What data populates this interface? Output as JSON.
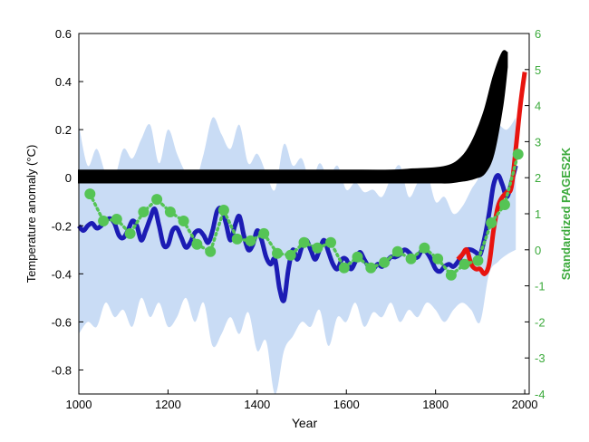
{
  "chart_data": {
    "type": "line",
    "xlabel": "Year",
    "ylabel": "Temperature anomaly (°C)",
    "y2label": "Standardized PAGES2K",
    "xlim": [
      1000,
      2010
    ],
    "ylim": [
      -0.9,
      0.6
    ],
    "y2lim": [
      -4,
      6
    ],
    "xticks": [
      1000,
      1200,
      1400,
      1600,
      1800,
      2000
    ],
    "yticks": [
      -0.8,
      -0.6,
      -0.4,
      -0.2,
      0,
      0.2,
      0.4,
      0.6
    ],
    "y2ticks": [
      -4,
      -3,
      -2,
      -1,
      0,
      1,
      2,
      3,
      4,
      5,
      6
    ],
    "grid": false,
    "colors": {
      "uncertainty": "#c9dcf5",
      "reconstruction": "#1c1cb4",
      "instrumental": "#e8140f",
      "projection": "#000000",
      "pages2k": "#55c455",
      "right_axis": "#3caa3c"
    },
    "uncertainty_band": {
      "x": [
        1000,
        1020,
        1040,
        1060,
        1080,
        1100,
        1120,
        1140,
        1160,
        1180,
        1200,
        1220,
        1240,
        1260,
        1280,
        1300,
        1320,
        1340,
        1360,
        1380,
        1400,
        1420,
        1440,
        1460,
        1480,
        1500,
        1520,
        1540,
        1560,
        1580,
        1600,
        1620,
        1640,
        1660,
        1680,
        1700,
        1720,
        1740,
        1760,
        1780,
        1800,
        1820,
        1840,
        1860,
        1880,
        1900,
        1920,
        1940,
        1960,
        1980
      ],
      "upper": [
        0.22,
        0.05,
        0.12,
        0.02,
        0.0,
        0.12,
        0.08,
        0.16,
        0.22,
        0.06,
        0.2,
        0.1,
        0.02,
        -0.02,
        0.1,
        0.25,
        0.18,
        0.12,
        0.22,
        0.06,
        0.1,
        0.02,
        -0.05,
        0.14,
        0.05,
        0.08,
        -0.02,
        0.06,
        0.0,
        0.05,
        -0.05,
        -0.02,
        -0.06,
        -0.05,
        -0.08,
        0.0,
        0.05,
        -0.08,
        -0.02,
        0.02,
        -0.1,
        -0.08,
        -0.15,
        -0.12,
        -0.05,
        0.02,
        0.2,
        0.22,
        0.2,
        0.25
      ],
      "lower": [
        -0.65,
        -0.6,
        -0.62,
        -0.52,
        -0.58,
        -0.55,
        -0.62,
        -0.5,
        -0.58,
        -0.52,
        -0.62,
        -0.58,
        -0.5,
        -0.6,
        -0.52,
        -0.7,
        -0.65,
        -0.58,
        -0.65,
        -0.56,
        -0.72,
        -0.68,
        -0.9,
        -0.72,
        -0.66,
        -0.6,
        -0.62,
        -0.55,
        -0.7,
        -0.58,
        -0.6,
        -0.52,
        -0.62,
        -0.56,
        -0.58,
        -0.52,
        -0.6,
        -0.55,
        -0.58,
        -0.52,
        -0.55,
        -0.6,
        -0.55,
        -0.52,
        -0.55,
        -0.6,
        -0.4,
        -0.35,
        -0.32,
        -0.3
      ]
    },
    "series": [
      {
        "x": [
          1000,
          1010,
          1020,
          1030,
          1040,
          1050,
          1060,
          1070,
          1080,
          1090,
          1100,
          1110,
          1120,
          1130,
          1140,
          1150,
          1160,
          1170,
          1180,
          1190,
          1200,
          1210,
          1220,
          1230,
          1240,
          1250,
          1260,
          1270,
          1280,
          1290,
          1300,
          1310,
          1320,
          1330,
          1340,
          1350,
          1360,
          1370,
          1380,
          1390,
          1400,
          1410,
          1420,
          1430,
          1440,
          1450,
          1460,
          1470,
          1480,
          1490,
          1500,
          1510,
          1520,
          1530,
          1540,
          1550,
          1560,
          1570,
          1580,
          1590,
          1600,
          1610,
          1620,
          1630,
          1640,
          1650,
          1660,
          1670,
          1680,
          1690,
          1700,
          1710,
          1720,
          1730,
          1740,
          1750,
          1760,
          1770,
          1780,
          1790,
          1800,
          1810,
          1820,
          1830,
          1840,
          1850,
          1860,
          1870,
          1880,
          1890,
          1900,
          1910,
          1920,
          1930,
          1940,
          1950,
          1960,
          1970,
          1980
        ],
        "values": [
          -0.2,
          -0.22,
          -0.2,
          -0.19,
          -0.21,
          -0.2,
          -0.18,
          -0.17,
          -0.19,
          -0.24,
          -0.25,
          -0.22,
          -0.18,
          -0.2,
          -0.26,
          -0.22,
          -0.17,
          -0.13,
          -0.2,
          -0.28,
          -0.28,
          -0.22,
          -0.21,
          -0.25,
          -0.29,
          -0.27,
          -0.23,
          -0.22,
          -0.24,
          -0.27,
          -0.22,
          -0.14,
          -0.13,
          -0.19,
          -0.26,
          -0.2,
          -0.16,
          -0.24,
          -0.3,
          -0.28,
          -0.22,
          -0.26,
          -0.33,
          -0.36,
          -0.34,
          -0.46,
          -0.51,
          -0.38,
          -0.3,
          -0.34,
          -0.29,
          -0.26,
          -0.3,
          -0.34,
          -0.3,
          -0.26,
          -0.31,
          -0.36,
          -0.38,
          -0.34,
          -0.34,
          -0.38,
          -0.35,
          -0.31,
          -0.34,
          -0.37,
          -0.38,
          -0.36,
          -0.37,
          -0.35,
          -0.33,
          -0.33,
          -0.32,
          -0.3,
          -0.31,
          -0.33,
          -0.33,
          -0.3,
          -0.31,
          -0.34,
          -0.38,
          -0.39,
          -0.37,
          -0.36,
          -0.37,
          -0.35,
          -0.32,
          -0.3,
          -0.3,
          -0.31,
          -0.32,
          -0.25,
          -0.15,
          -0.03,
          0.01,
          -0.03,
          -0.08,
          -0.02,
          0.05
        ]
      },
      {
        "x": [
          1850,
          1860,
          1870,
          1880,
          1890,
          1900,
          1910,
          1920,
          1930,
          1940,
          1950,
          1960,
          1970,
          1980,
          1990,
          2000
        ],
        "values": [
          -0.34,
          -0.32,
          -0.3,
          -0.36,
          -0.38,
          -0.38,
          -0.4,
          -0.36,
          -0.22,
          -0.12,
          -0.08,
          -0.06,
          -0.04,
          0.12,
          0.3,
          0.44
        ]
      },
      {
        "x": [
          1000,
          1100,
          1200,
          1300,
          1400,
          1500,
          1600,
          1700,
          1750,
          1800,
          1830,
          1850,
          1870,
          1890,
          1910,
          1930,
          1950,
          1960
        ],
        "upper": [
          0.03,
          0.03,
          0.03,
          0.03,
          0.03,
          0.03,
          0.03,
          0.03,
          0.035,
          0.04,
          0.05,
          0.07,
          0.11,
          0.18,
          0.28,
          0.42,
          0.52,
          0.52
        ],
        "lower": [
          -0.02,
          -0.02,
          -0.02,
          -0.02,
          -0.02,
          -0.02,
          -0.02,
          -0.02,
          -0.02,
          -0.02,
          -0.02,
          -0.015,
          -0.01,
          0.0,
          0.02,
          0.1,
          0.3,
          0.46
        ]
      },
      {
        "axis": "right",
        "x": [
          1025,
          1055,
          1085,
          1115,
          1145,
          1175,
          1205,
          1235,
          1265,
          1295,
          1325,
          1355,
          1385,
          1415,
          1445,
          1475,
          1505,
          1535,
          1565,
          1595,
          1625,
          1655,
          1685,
          1715,
          1745,
          1775,
          1805,
          1835,
          1865,
          1895,
          1925,
          1955,
          1985
        ],
        "values": [
          1.55,
          0.8,
          0.85,
          0.45,
          1.05,
          1.4,
          1.05,
          0.8,
          0.15,
          -0.05,
          1.1,
          0.3,
          0.25,
          0.45,
          -0.1,
          -0.15,
          0.2,
          0.05,
          0.2,
          -0.5,
          -0.2,
          -0.5,
          -0.35,
          -0.05,
          -0.25,
          0.05,
          -0.25,
          -0.7,
          -0.4,
          -0.3,
          0.75,
          1.25,
          2.65
        ]
      }
    ]
  }
}
